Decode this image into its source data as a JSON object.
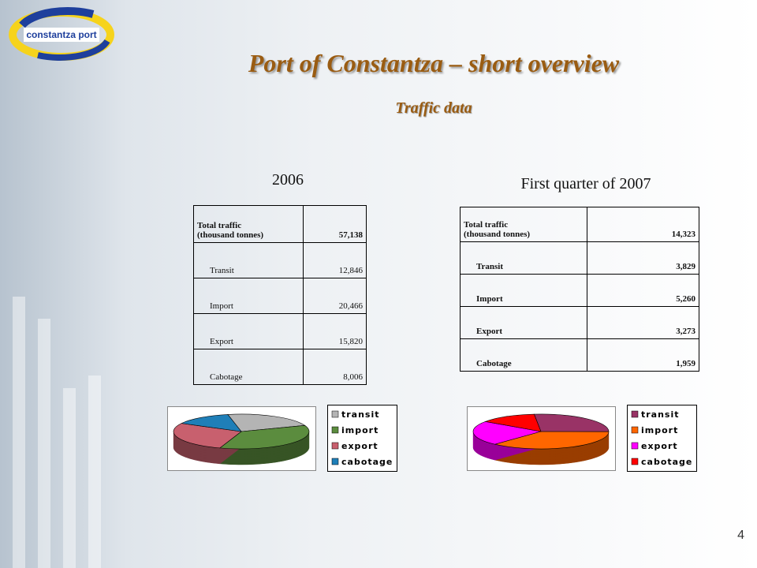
{
  "header": {
    "logo": "constantza port",
    "title": "Port of Constantza – short  overview",
    "subtitle": "Traffic data"
  },
  "page_number": "4",
  "chart_data": [
    {
      "type": "pie",
      "title": "2006",
      "total_label": [
        "Total traffic",
        "(thousand tonnes)"
      ],
      "total": "57,138",
      "row_labels": [
        "Transit",
        "Import",
        "Export",
        "Cabotage"
      ],
      "categories": [
        "transit",
        "import",
        "export",
        "cabotage"
      ],
      "values": [
        12846,
        20466,
        15820,
        8006
      ],
      "value_labels": [
        "12,846",
        "20,466",
        "15,820",
        "8,006"
      ],
      "colors": [
        "#b4b4b4",
        "#5b8c3e",
        "#c8606e",
        "#1f7fb8"
      ]
    },
    {
      "type": "pie",
      "title": "First quarter of 2007",
      "total_label": [
        "Total traffic",
        "(thousand tonnes)"
      ],
      "total": "14,323",
      "row_labels": [
        "Transit",
        "Import",
        "Export",
        "Cabotage"
      ],
      "categories": [
        "transit",
        "import",
        "export",
        "cabotage"
      ],
      "values": [
        3829,
        5260,
        3273,
        1959
      ],
      "value_labels": [
        "3,829",
        "5,260",
        "3,273",
        "1,959"
      ],
      "colors": [
        "#993366",
        "#ff6600",
        "#ff00ff",
        "#ff0000"
      ]
    }
  ]
}
